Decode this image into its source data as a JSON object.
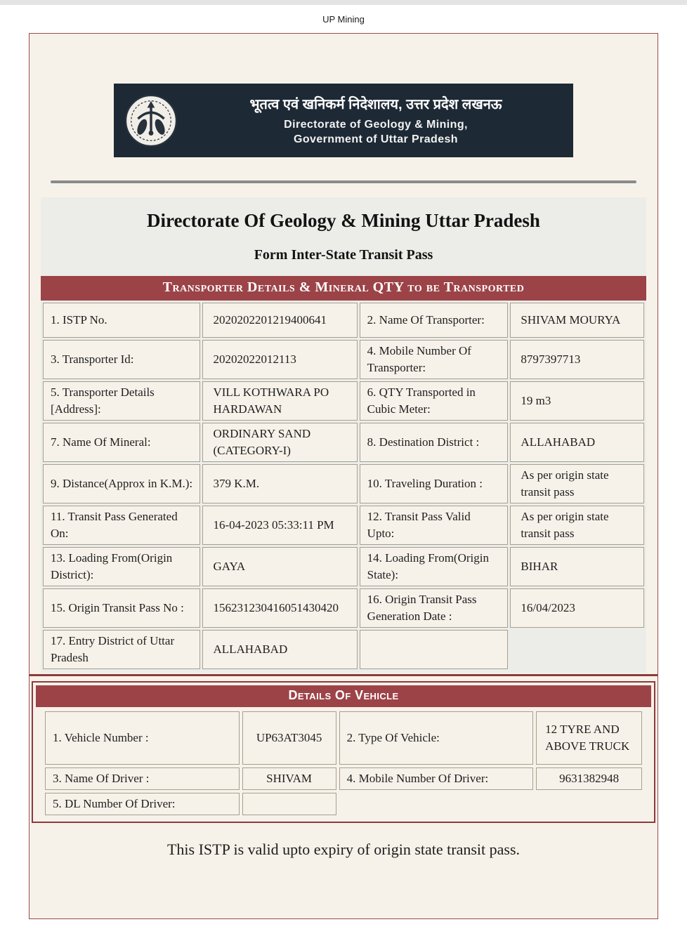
{
  "window_title": "UP Mining",
  "gov_banner": {
    "logo_icon": "up-government-emblem",
    "hindi_title": "भूतत्व एवं खनिकर्म निदेशालय, उत्तर प्रदेश लखनऊ",
    "english_line1": "Directorate of Geology & Mining,",
    "english_line2": "Government of Uttar Pradesh"
  },
  "doc": {
    "title": "Directorate Of Geology & Mining Uttar Pradesh",
    "subtitle": "Form Inter-State Transit Pass",
    "footer_note": "This ISTP is valid upto expiry of origin state transit pass."
  },
  "transporter_section": {
    "banner": "Transporter Details & Mineral QTY to be Transported",
    "rows": [
      [
        "1. ISTP No.",
        "2020202201219400641",
        "2. Name Of Transporter:",
        "SHIVAM MOURYA"
      ],
      [
        "3. Transporter Id:",
        "20202022012113",
        "4. Mobile Number Of Transporter:",
        "8797397713"
      ],
      [
        "5. Transporter Details [Address]:",
        "VILL KOTHWARA PO HARDAWAN",
        "6. QTY Transported in Cubic Meter:",
        "19 m3"
      ],
      [
        "7. Name Of Mineral:",
        "ORDINARY SAND (CATEGORY-I)",
        "8. Destination District :",
        "ALLAHABAD"
      ],
      [
        "9. Distance(Approx in K.M.):",
        "379 K.M.",
        "10. Traveling Duration :",
        "As per origin state transit pass"
      ],
      [
        "11. Transit Pass Generated On:",
        "16-04-2023 05:33:11 PM",
        "12. Transit Pass Valid Upto:",
        "As per origin state transit pass"
      ],
      [
        "13. Loading From(Origin District):",
        "GAYA",
        "14. Loading From(Origin State):",
        "BIHAR"
      ],
      [
        "15. Origin Transit Pass No :",
        "156231230416051430420",
        "16. Origin Transit Pass Generation Date :",
        "16/04/2023"
      ],
      [
        "17. Entry District of Uttar Pradesh",
        "ALLAHABAD",
        "",
        null
      ]
    ]
  },
  "vehicle_section": {
    "banner": "Details Of Vehicle",
    "rows": [
      [
        "1. Vehicle Number :",
        "UP63AT3045",
        "2. Type Of Vehicle:",
        "12 TYRE AND ABOVE TRUCK"
      ],
      [
        "3. Name Of Driver :",
        "SHIVAM",
        "4. Mobile Number Of Driver:",
        "9631382948"
      ],
      [
        "5. DL Number Of Driver:",
        "",
        null,
        null
      ]
    ]
  },
  "colors": {
    "maroon_banner": "#9c4347",
    "maroon_border": "#8b3a3e",
    "header_navy": "#1d2935",
    "page_background": "#f7f2e9",
    "section_background": "#ecede9",
    "cell_border": "#a69f91",
    "divider_gray": "#8a8a8a"
  }
}
